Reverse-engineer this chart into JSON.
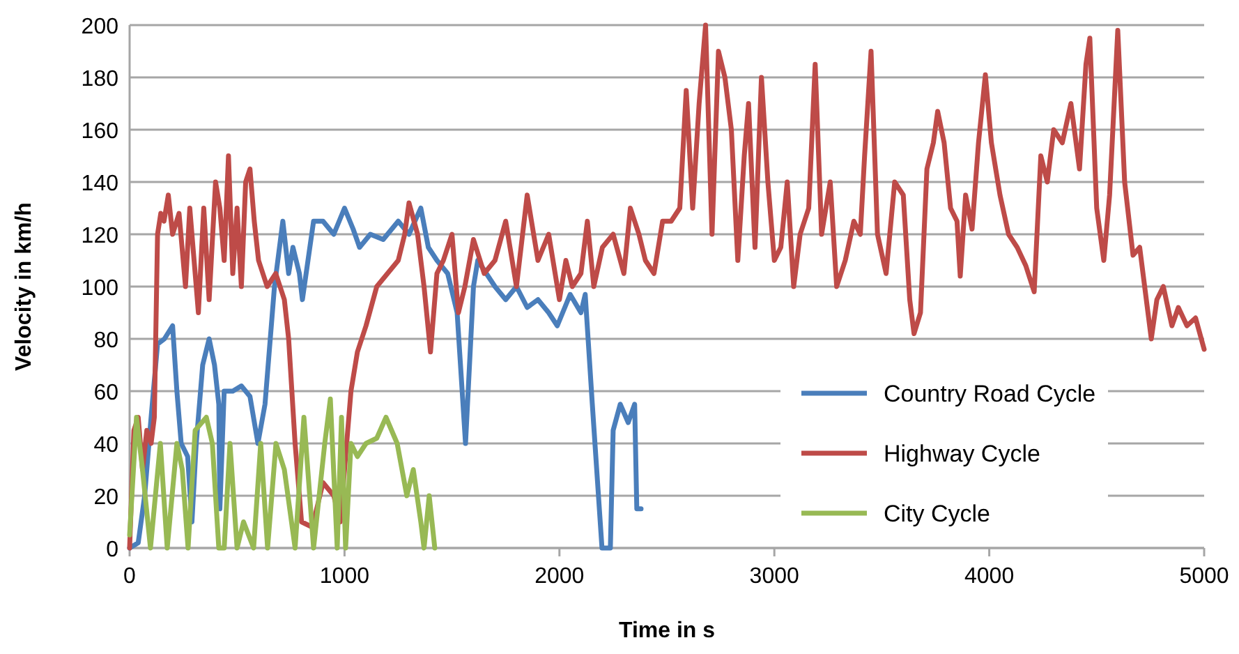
{
  "chart_data": {
    "type": "line",
    "xlabel": "Time in s",
    "ylabel": "Velocity in km/h",
    "xlim": [
      0,
      5000
    ],
    "xticks": [
      0,
      1000,
      2000,
      3000,
      4000,
      5000
    ],
    "ylim": [
      0,
      200
    ],
    "yticks": [
      0,
      20,
      40,
      60,
      80,
      100,
      120,
      140,
      160,
      180,
      200
    ],
    "grid": "y",
    "legend": "right",
    "marker": "none",
    "line_style": "solid",
    "series": [
      {
        "name": "Country Road Cycle",
        "color": "#4a7ebb",
        "x": [
          0,
          40,
          70,
          100,
          130,
          162,
          200,
          220,
          240,
          270,
          290,
          310,
          340,
          370,
          395,
          415,
          420,
          440,
          480,
          520,
          560,
          597,
          630,
          674,
          713,
          740,
          760,
          790,
          804,
          830,
          856,
          900,
          950,
          1000,
          1040,
          1070,
          1120,
          1180,
          1250,
          1300,
          1355,
          1390,
          1430,
          1480,
          1524,
          1563,
          1600,
          1620,
          1660,
          1700,
          1750,
          1800,
          1850,
          1900,
          1950,
          1990,
          2050,
          2100,
          2120,
          2153,
          2198,
          2237,
          2250,
          2283,
          2320,
          2350,
          2360,
          2380
        ],
        "values": [
          0,
          2,
          20,
          50,
          78,
          80,
          85,
          60,
          40,
          35,
          10,
          40,
          70,
          80,
          70,
          55,
          15,
          60,
          60,
          62,
          58,
          40,
          55,
          100,
          125,
          105,
          115,
          105,
          95,
          110,
          125,
          125,
          120,
          130,
          122,
          115,
          120,
          118,
          125,
          120,
          130,
          115,
          110,
          105,
          90,
          40,
          100,
          110,
          105,
          100,
          95,
          100,
          92,
          95,
          90,
          85,
          97,
          90,
          97,
          55,
          0,
          0,
          45,
          55,
          48,
          55,
          15,
          15
        ]
      },
      {
        "name": "Highway Cycle",
        "color": "#be4b48",
        "x": [
          0,
          20,
          40,
          60,
          80,
          100,
          115,
          130,
          145,
          160,
          180,
          200,
          230,
          260,
          280,
          300,
          320,
          345,
          370,
          400,
          420,
          440,
          460,
          480,
          500,
          520,
          540,
          560,
          580,
          600,
          640,
          680,
          720,
          740,
          770,
          800,
          850,
          900,
          950,
          980,
          1000,
          1030,
          1060,
          1100,
          1150,
          1200,
          1250,
          1280,
          1300,
          1340,
          1370,
          1400,
          1430,
          1460,
          1500,
          1530,
          1560,
          1600,
          1650,
          1700,
          1750,
          1800,
          1850,
          1900,
          1950,
          2000,
          2030,
          2060,
          2100,
          2130,
          2160,
          2200,
          2250,
          2300,
          2330,
          2370,
          2400,
          2440,
          2480,
          2520,
          2560,
          2590,
          2620,
          2650,
          2680,
          2710,
          2740,
          2770,
          2800,
          2830,
          2860,
          2880,
          2910,
          2940,
          2970,
          3000,
          3030,
          3060,
          3090,
          3120,
          3160,
          3190,
          3220,
          3260,
          3290,
          3330,
          3370,
          3400,
          3420,
          3450,
          3480,
          3520,
          3560,
          3600,
          3630,
          3650,
          3680,
          3710,
          3740,
          3760,
          3790,
          3820,
          3850,
          3865,
          3890,
          3920,
          3950,
          3982,
          4010,
          4050,
          4090,
          4130,
          4170,
          4209,
          4240,
          4270,
          4300,
          4340,
          4380,
          4420,
          4450,
          4468,
          4500,
          4533,
          4560,
          4598,
          4630,
          4669,
          4700,
          4754,
          4780,
          4810,
          4850,
          4880,
          4920,
          4960,
          5000
        ],
        "values": [
          0,
          45,
          50,
          30,
          45,
          40,
          50,
          120,
          128,
          125,
          135,
          120,
          128,
          100,
          130,
          110,
          90,
          130,
          95,
          140,
          130,
          110,
          150,
          105,
          130,
          100,
          140,
          145,
          125,
          110,
          100,
          105,
          95,
          80,
          40,
          10,
          8,
          25,
          20,
          10,
          30,
          60,
          75,
          85,
          100,
          105,
          110,
          120,
          132,
          120,
          100,
          75,
          105,
          110,
          120,
          90,
          100,
          118,
          105,
          110,
          125,
          100,
          135,
          110,
          120,
          95,
          110,
          100,
          105,
          125,
          100,
          115,
          120,
          105,
          130,
          120,
          110,
          105,
          125,
          125,
          130,
          175,
          130,
          170,
          200,
          120,
          190,
          180,
          160,
          110,
          150,
          170,
          115,
          180,
          140,
          110,
          115,
          140,
          100,
          120,
          130,
          185,
          120,
          140,
          100,
          110,
          125,
          120,
          150,
          190,
          120,
          105,
          140,
          135,
          95,
          82,
          90,
          145,
          155,
          167,
          155,
          130,
          125,
          104,
          135,
          122,
          155,
          181,
          155,
          135,
          120,
          115,
          108,
          98,
          150,
          140,
          160,
          155,
          170,
          145,
          185,
          195,
          130,
          110,
          135,
          198,
          140,
          112,
          115,
          80,
          95,
          100,
          85,
          92,
          85,
          88,
          76
        ]
      },
      {
        "name": "City Cycle",
        "color": "#98b954",
        "x": [
          0,
          32,
          60,
          97,
          143,
          175,
          220,
          245,
          272,
          305,
          357,
          385,
          415,
          440,
          467,
          500,
          530,
          577,
          610,
          642,
          681,
          720,
          770,
          811,
          856,
          908,
          934,
          966,
          986,
          1005,
          1030,
          1060,
          1100,
          1150,
          1193,
          1245,
          1290,
          1320,
          1355,
          1370,
          1394,
          1420
        ],
        "values": [
          5,
          50,
          30,
          0,
          40,
          0,
          40,
          30,
          0,
          45,
          50,
          40,
          0,
          0,
          40,
          0,
          10,
          0,
          40,
          0,
          40,
          30,
          0,
          50,
          0,
          40,
          57,
          0,
          50,
          0,
          40,
          35,
          40,
          42,
          50,
          40,
          20,
          30,
          10,
          0,
          20,
          0
        ]
      }
    ]
  }
}
